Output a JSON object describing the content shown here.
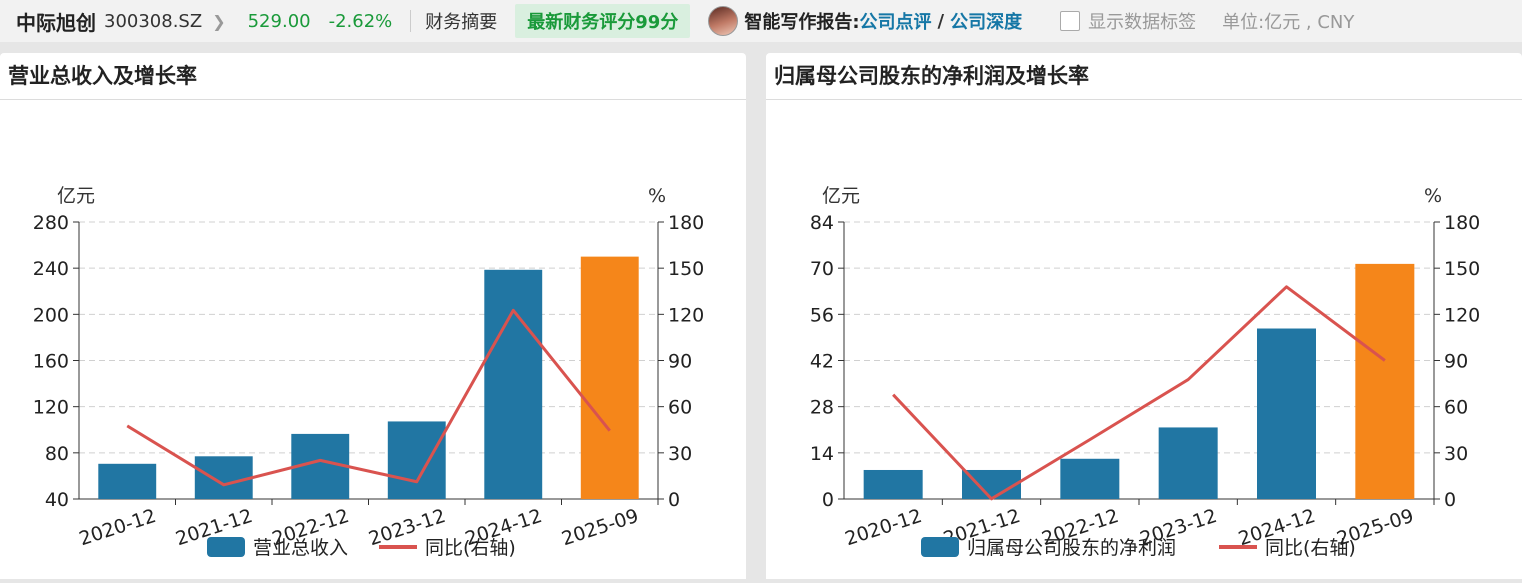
{
  "header": {
    "stock_name": "中际旭创",
    "stock_code": "300308.SZ",
    "price": "529.00",
    "change": "-2.62%",
    "tab_label": "财务摘要",
    "score_badge": "最新财务评分99分",
    "ai_report_label": "智能写作报告:",
    "link_review": "公司点评",
    "link_separator": "/",
    "link_depth": "公司深度",
    "show_labels": "显示数据标签",
    "unit_label": "单位:亿元 , CNY",
    "colors": {
      "price": "#1a9a3a",
      "link": "#1677a6"
    }
  },
  "chart_data": [
    {
      "type": "bar",
      "title": "营业总收入及增长率",
      "left_unit": "亿元",
      "right_unit": "%",
      "categories": [
        "2020-12",
        "2021-12",
        "2022-12",
        "2023-12",
        "2024-12",
        "2025-09"
      ],
      "ylim": [
        40,
        280
      ],
      "yticks": [
        40,
        80,
        120,
        160,
        200,
        240,
        280
      ],
      "y2lim": [
        0,
        180
      ],
      "y2ticks": [
        0,
        30,
        60,
        90,
        120,
        150,
        180
      ],
      "grid": true,
      "legend_position": "bottom",
      "series": [
        {
          "name": "营业总收入",
          "type": "bar",
          "axis": "left",
          "values": [
            70.5,
            77,
            96.4,
            107.2,
            238.6,
            250.0
          ],
          "color": "#2176a3",
          "highlight_last_color": "#f5861a"
        },
        {
          "name": "同比(右轴)",
          "type": "line",
          "axis": "right",
          "values": [
            47.5,
            9.2,
            25.1,
            11.2,
            122.6,
            44.4
          ],
          "color": "#d9534f"
        }
      ]
    },
    {
      "type": "bar",
      "title": "归属母公司股东的净利润及增长率",
      "left_unit": "亿元",
      "right_unit": "%",
      "categories": [
        "2020-12",
        "2021-12",
        "2022-12",
        "2023-12",
        "2024-12",
        "2025-09"
      ],
      "ylim": [
        0,
        84
      ],
      "yticks": [
        0,
        14,
        28,
        42,
        56,
        70,
        84
      ],
      "y2lim": [
        0,
        180
      ],
      "y2ticks": [
        0,
        30,
        60,
        90,
        120,
        150,
        180
      ],
      "grid": true,
      "legend_position": "bottom",
      "series": [
        {
          "name": "归属母公司股东的净利润",
          "type": "bar",
          "axis": "left",
          "values": [
            8.8,
            8.8,
            12.2,
            21.7,
            51.7,
            71.3
          ],
          "color": "#2176a3",
          "highlight_last_color": "#f5861a"
        },
        {
          "name": "同比(右轴)",
          "type": "line",
          "axis": "right",
          "values": [
            67.8,
            0.1,
            38.6,
            77.6,
            137.9,
            90.0
          ],
          "color": "#d9534f"
        }
      ]
    }
  ]
}
